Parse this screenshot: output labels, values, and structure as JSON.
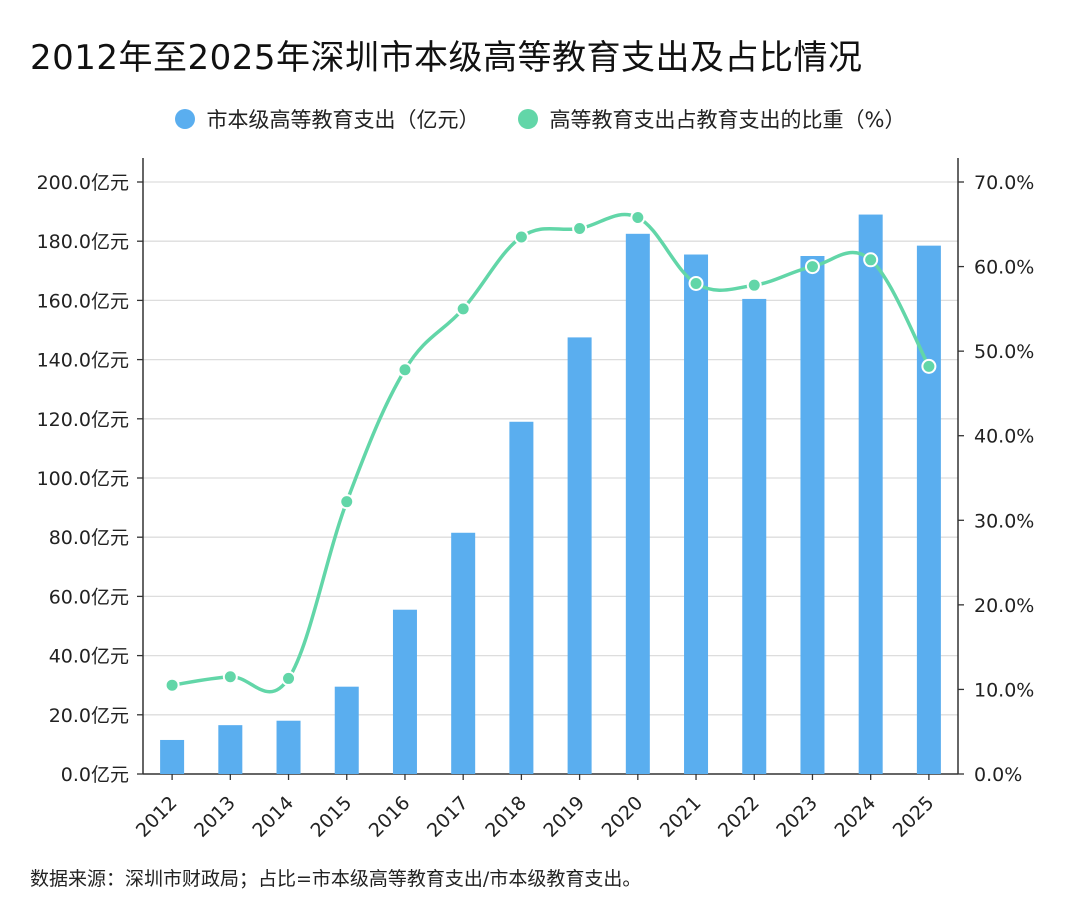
{
  "title": "2012年至2025年深圳市本级高等教育支出及占比情况",
  "source": "数据来源：深圳市财政局；占比=市本级高等教育支出/市本级教育支出。",
  "colors": {
    "bar": "#5aaeef",
    "line": "#62d6a8",
    "axis": "#333333",
    "grid": "#dddddd"
  },
  "chart_data": {
    "type": "bar",
    "categories": [
      "2012",
      "2013",
      "2014",
      "2015",
      "2016",
      "2017",
      "2018",
      "2019",
      "2020",
      "2021",
      "2022",
      "2023",
      "2024",
      "2025"
    ],
    "series": [
      {
        "name": "市本级高等教育支出（亿元）",
        "type": "bar",
        "axis": "left",
        "values": [
          11.5,
          16.5,
          18,
          29.5,
          55.5,
          81.5,
          119,
          147.5,
          182.5,
          175.5,
          160.5,
          175,
          189,
          178.5
        ]
      },
      {
        "name": "高等教育支出占教育支出的比重（%）",
        "type": "line",
        "axis": "right",
        "values": [
          10.5,
          11.5,
          11.3,
          32.2,
          47.8,
          55,
          63.5,
          64.5,
          65.8,
          58,
          57.8,
          60,
          60.8,
          48.2
        ]
      }
    ],
    "y_left": {
      "ylim": [
        0,
        200
      ],
      "ticks": [
        0,
        20,
        40,
        60,
        80,
        100,
        120,
        140,
        160,
        180,
        200
      ],
      "tick_labels": [
        "0.0亿元",
        "20.0亿元",
        "40.0亿元",
        "60.0亿元",
        "80.0亿元",
        "100.0亿元",
        "120.0亿元",
        "140.0亿元",
        "160.0亿元",
        "180.0亿元",
        "200.0亿元"
      ]
    },
    "y_right": {
      "ylim": [
        0,
        70
      ],
      "ticks": [
        0,
        10,
        20,
        30,
        40,
        50,
        60,
        70
      ],
      "tick_labels": [
        "0.0%",
        "10.0%",
        "20.0%",
        "30.0%",
        "40.0%",
        "50.0%",
        "60.0%",
        "70.0%"
      ]
    },
    "grid": true,
    "legend_position": "top-center"
  }
}
